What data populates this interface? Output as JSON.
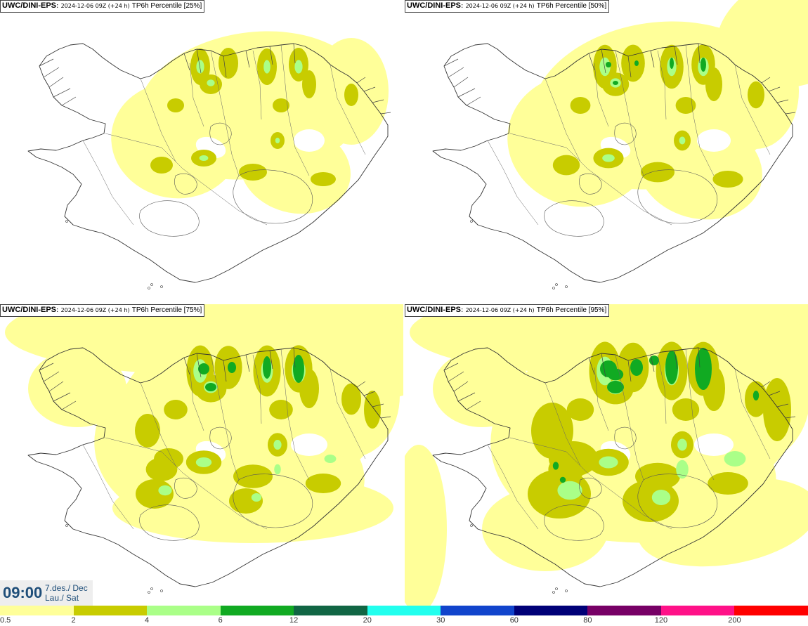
{
  "panels": [
    {
      "model": "UWC/DINI-EPS",
      "run": "2024-12-06 09Z (+24 h)",
      "label": "TP6h Percentile [25%]",
      "level": 1
    },
    {
      "model": "UWC/DINI-EPS",
      "run": "2024-12-06 09Z (+24 h)",
      "label": "TP6h Percentile [50%]",
      "level": 2
    },
    {
      "model": "UWC/DINI-EPS",
      "run": "2024-12-06 09Z (+24 h)",
      "label": "TP6h Percentile [75%]",
      "level": 3
    },
    {
      "model": "UWC/DINI-EPS",
      "run": "2024-12-06 09Z (+24 h)",
      "label": "TP6h Percentile [95%]",
      "level": 4
    }
  ],
  "valid_time": {
    "time": "09:00",
    "date_line": "7.des./ Dec",
    "day_line": "Lau./ Sat"
  },
  "legend": {
    "colors": [
      "#ffff99",
      "#c8cc00",
      "#aaff88",
      "#11aa22",
      "#116644",
      "#22ffee",
      "#1144cc",
      "#000077",
      "#770066",
      "#ff1188",
      "#ff0000"
    ],
    "ticks": [
      "0.5",
      "2",
      "4",
      "6",
      "12",
      "20",
      "30",
      "60",
      "80",
      "120",
      "200"
    ]
  }
}
